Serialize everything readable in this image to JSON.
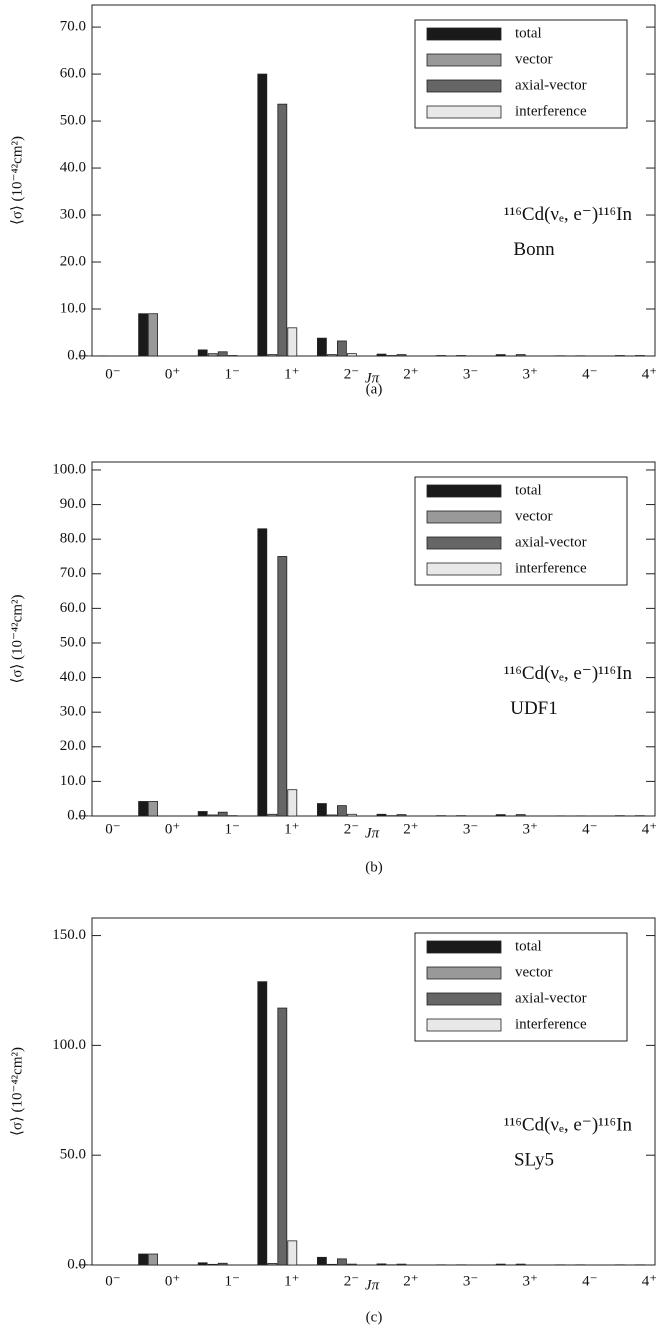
{
  "chart_data": [
    {
      "type": "bar",
      "caption": "(a)",
      "x_label": "Jπ",
      "y_label": "⟨σ⟩ (10⁻⁴²cm²)",
      "annotation": "¹¹⁶Cd(νₑ, e⁻)¹¹⁶In",
      "model": "Bonn",
      "categories": [
        "0⁻",
        "0⁺",
        "1⁻",
        "1⁺",
        "2⁻",
        "2⁺",
        "3⁻",
        "3⁺",
        "4⁻",
        "4⁺"
      ],
      "series": [
        {
          "name": "total",
          "color": "#1a1a1a",
          "values": [
            0.05,
            9.0,
            1.3,
            60.0,
            3.8,
            0.4,
            0.1,
            0.3,
            0.05,
            0.1
          ]
        },
        {
          "name": "vector",
          "color": "#999999",
          "values": [
            0.02,
            9.0,
            0.5,
            0.3,
            0.3,
            0.1,
            0.0,
            0.0,
            0.0,
            0.0
          ]
        },
        {
          "name": "axial-vector",
          "color": "#666666",
          "values": [
            0.03,
            0.0,
            0.9,
            53.6,
            3.2,
            0.3,
            0.1,
            0.3,
            0.05,
            0.1
          ]
        },
        {
          "name": "interference",
          "color": "#e8e8e8",
          "values": [
            0.0,
            0.0,
            0.1,
            6.0,
            0.5,
            0.0,
            0.0,
            0.0,
            0.0,
            0.0
          ]
        }
      ],
      "ylim": [
        0,
        74.7
      ],
      "yticks": [
        {
          "value": 0,
          "label": "0.0"
        },
        {
          "value": 10,
          "label": "10.0"
        },
        {
          "value": 20,
          "label": "20.0"
        },
        {
          "value": 30,
          "label": "30.0"
        },
        {
          "value": 40,
          "label": "40.0"
        },
        {
          "value": 50,
          "label": "50.0"
        },
        {
          "value": 60,
          "label": "60.0"
        },
        {
          "value": 70,
          "label": "70.0"
        }
      ],
      "legend": "upper right"
    },
    {
      "type": "bar",
      "caption": "(b)",
      "x_label": "Jπ",
      "y_label": "⟨σ⟩ (10⁻⁴²cm²)",
      "annotation": "¹¹⁶Cd(νₑ, e⁻)¹¹⁶In",
      "model": "UDF1",
      "categories": [
        "0⁻",
        "0⁺",
        "1⁻",
        "1⁺",
        "2⁻",
        "2⁺",
        "3⁻",
        "3⁺",
        "4⁻",
        "4⁺"
      ],
      "series": [
        {
          "name": "total",
          "color": "#1a1a1a",
          "values": [
            0.05,
            4.2,
            1.3,
            83.0,
            3.6,
            0.5,
            0.1,
            0.4,
            0.05,
            0.1
          ]
        },
        {
          "name": "vector",
          "color": "#999999",
          "values": [
            0.02,
            4.2,
            0.3,
            0.5,
            0.3,
            0.1,
            0.0,
            0.0,
            0.0,
            0.0
          ]
        },
        {
          "name": "axial-vector",
          "color": "#666666",
          "values": [
            0.03,
            0.0,
            1.1,
            75.0,
            3.0,
            0.4,
            0.1,
            0.4,
            0.05,
            0.1
          ]
        },
        {
          "name": "interference",
          "color": "#e8e8e8",
          "values": [
            0.0,
            0.0,
            0.1,
            7.6,
            0.5,
            0.0,
            0.0,
            0.0,
            0.0,
            0.0
          ]
        }
      ],
      "ylim": [
        0,
        102.3
      ],
      "yticks": [
        {
          "value": 0,
          "label": "0.0"
        },
        {
          "value": 10,
          "label": "10.0"
        },
        {
          "value": 20,
          "label": "20.0"
        },
        {
          "value": 30,
          "label": "30.0"
        },
        {
          "value": 40,
          "label": "40.0"
        },
        {
          "value": 50,
          "label": "50.0"
        },
        {
          "value": 60,
          "label": "60.0"
        },
        {
          "value": 70,
          "label": "70.0"
        },
        {
          "value": 80,
          "label": "80.0"
        },
        {
          "value": 90,
          "label": "90.0"
        },
        {
          "value": 100,
          "label": "100.0"
        }
      ],
      "legend": "upper right"
    },
    {
      "type": "bar",
      "caption": "(c)",
      "x_label": "Jπ",
      "y_label": "⟨σ⟩ (10⁻⁴²cm²)",
      "annotation": "¹¹⁶Cd(νₑ, e⁻)¹¹⁶In",
      "model": "SLy5",
      "categories": [
        "0⁻",
        "0⁺",
        "1⁻",
        "1⁺",
        "2⁻",
        "2⁺",
        "3⁻",
        "3⁺",
        "4⁻",
        "4⁺"
      ],
      "series": [
        {
          "name": "total",
          "color": "#1a1a1a",
          "values": [
            0.1,
            5.0,
            1.0,
            129.0,
            3.5,
            0.5,
            0.1,
            0.4,
            0.1,
            0.1
          ]
        },
        {
          "name": "vector",
          "color": "#999999",
          "values": [
            0.05,
            5.0,
            0.3,
            0.7,
            0.3,
            0.1,
            0.0,
            0.0,
            0.0,
            0.0
          ]
        },
        {
          "name": "axial-vector",
          "color": "#666666",
          "values": [
            0.05,
            0.0,
            0.8,
            117.0,
            2.8,
            0.4,
            0.1,
            0.4,
            0.1,
            0.1
          ]
        },
        {
          "name": "interference",
          "color": "#e8e8e8",
          "values": [
            0.0,
            0.0,
            0.0,
            11.0,
            0.4,
            0.0,
            0.0,
            0.0,
            0.0,
            0.0
          ]
        }
      ],
      "ylim": [
        0,
        158
      ],
      "yticks": [
        {
          "value": 0,
          "label": "0.0"
        },
        {
          "value": 50,
          "label": "50.0"
        },
        {
          "value": 100,
          "label": "100.0"
        },
        {
          "value": 150,
          "label": "150.0"
        }
      ],
      "legend": "upper right"
    }
  ]
}
